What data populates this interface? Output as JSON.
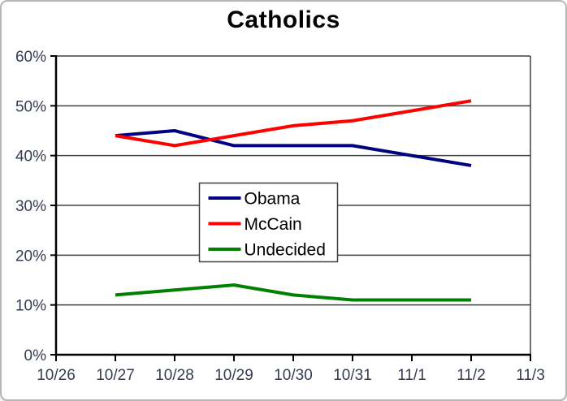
{
  "chart_data": {
    "type": "line",
    "title": "Catholics",
    "xlabel": "",
    "ylabel": "",
    "categories": [
      "10/26",
      "10/27",
      "10/28",
      "10/29",
      "10/30",
      "10/31",
      "11/1",
      "11/2",
      "11/3"
    ],
    "ylim": [
      0,
      60
    ],
    "grid": true,
    "legend_position": "center",
    "y_ticks": [
      {
        "v": 0,
        "label": "0%"
      },
      {
        "v": 10,
        "label": "10%"
      },
      {
        "v": 20,
        "label": "20%"
      },
      {
        "v": 30,
        "label": "30%"
      },
      {
        "v": 40,
        "label": "40%"
      },
      {
        "v": 50,
        "label": "50%"
      },
      {
        "v": 60,
        "label": "60%"
      }
    ],
    "series": [
      {
        "name": "Obama",
        "color": "#000080",
        "values": [
          null,
          44,
          45,
          42,
          42,
          42,
          40,
          38,
          null
        ]
      },
      {
        "name": "McCain",
        "color": "#ff0000",
        "values": [
          null,
          44,
          42,
          44,
          46,
          47,
          49,
          51,
          null
        ]
      },
      {
        "name": "Undecided",
        "color": "#008000",
        "values": [
          null,
          12,
          13,
          14,
          12,
          11,
          11,
          11,
          null
        ]
      }
    ],
    "colors": {
      "axis_label": "#333d52",
      "gridline": "#404040",
      "axis": "#000000",
      "legend_border": "#404040",
      "frame_border": "#b6b6b6",
      "background": "#ffffff",
      "title": "#000000"
    }
  }
}
